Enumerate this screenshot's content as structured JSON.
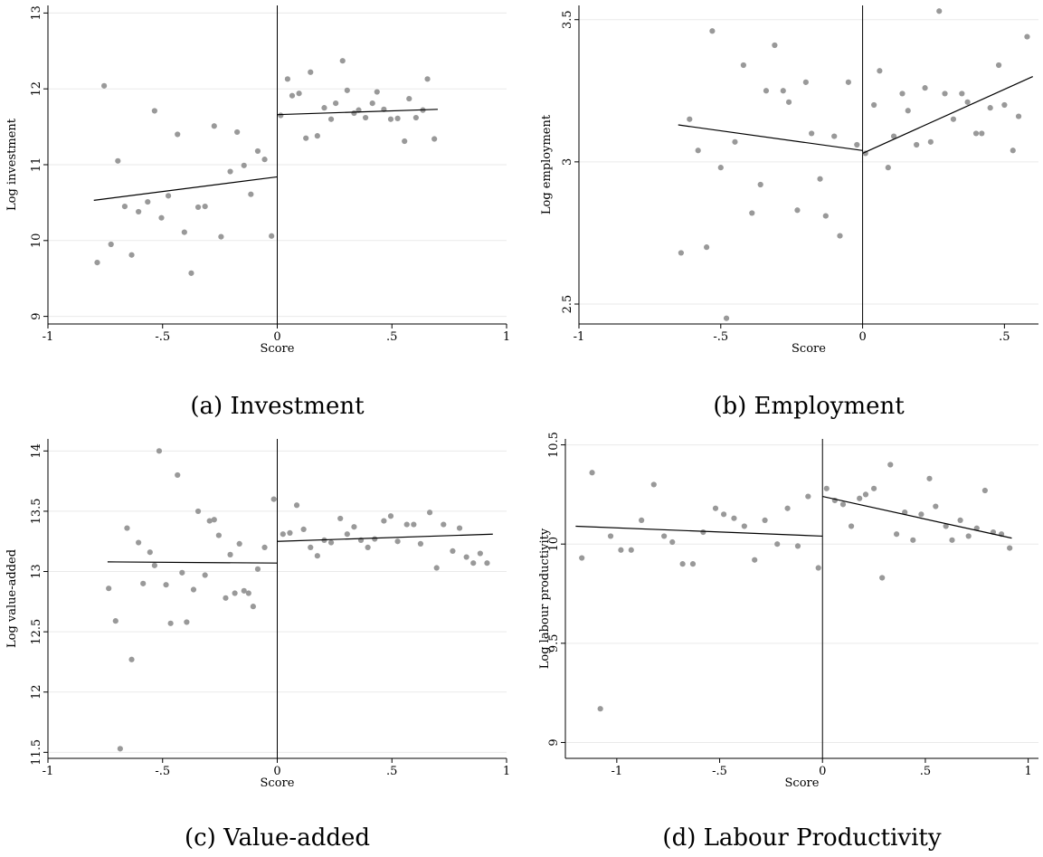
{
  "chart_data": [
    {
      "type": "scatter",
      "caption": "(a) Investment",
      "xlabel": "Score",
      "ylabel": "Log investment",
      "xlim": [
        -1,
        1
      ],
      "ylim": [
        8.9,
        13.1
      ],
      "xticks": [
        -1,
        -0.5,
        0,
        0.5,
        1
      ],
      "xtick_labels": [
        "-1",
        "-.5",
        "0",
        ".5",
        "1"
      ],
      "yticks": [
        9,
        10,
        11,
        12,
        13
      ],
      "ytick_labels": [
        "9",
        "10",
        "11",
        "12",
        "13"
      ],
      "grid": true,
      "cutoff": 0,
      "points": [
        [
          -0.785,
          9.71
        ],
        [
          -0.755,
          12.04
        ],
        [
          -0.725,
          9.95
        ],
        [
          -0.695,
          11.05
        ],
        [
          -0.665,
          10.45
        ],
        [
          -0.635,
          9.81
        ],
        [
          -0.605,
          10.38
        ],
        [
          -0.565,
          10.51
        ],
        [
          -0.535,
          11.71
        ],
        [
          -0.505,
          10.3
        ],
        [
          -0.475,
          10.59
        ],
        [
          -0.435,
          11.4
        ],
        [
          -0.405,
          10.11
        ],
        [
          -0.375,
          9.57
        ],
        [
          -0.345,
          10.44
        ],
        [
          -0.315,
          10.45
        ],
        [
          -0.275,
          11.51
        ],
        [
          -0.245,
          10.05
        ],
        [
          -0.205,
          10.91
        ],
        [
          -0.175,
          11.43
        ],
        [
          -0.145,
          10.99
        ],
        [
          -0.115,
          10.61
        ],
        [
          -0.085,
          11.18
        ],
        [
          -0.055,
          11.07
        ],
        [
          -0.025,
          10.06
        ],
        [
          0.015,
          11.65
        ],
        [
          0.045,
          12.13
        ],
        [
          0.065,
          11.91
        ],
        [
          0.095,
          11.94
        ],
        [
          0.125,
          11.35
        ],
        [
          0.145,
          12.22
        ],
        [
          0.175,
          11.38
        ],
        [
          0.205,
          11.75
        ],
        [
          0.235,
          11.6
        ],
        [
          0.255,
          11.81
        ],
        [
          0.285,
          12.37
        ],
        [
          0.305,
          11.98
        ],
        [
          0.335,
          11.68
        ],
        [
          0.355,
          11.72
        ],
        [
          0.385,
          11.62
        ],
        [
          0.415,
          11.81
        ],
        [
          0.435,
          11.96
        ],
        [
          0.465,
          11.73
        ],
        [
          0.495,
          11.6
        ],
        [
          0.525,
          11.61
        ],
        [
          0.555,
          11.31
        ],
        [
          0.575,
          11.87
        ],
        [
          0.605,
          11.62
        ],
        [
          0.635,
          11.72
        ],
        [
          0.655,
          12.13
        ],
        [
          0.685,
          11.34
        ]
      ],
      "fit_left": [
        [
          -0.8,
          10.53
        ],
        [
          0,
          10.84
        ]
      ],
      "fit_right": [
        [
          0,
          11.66
        ],
        [
          0.7,
          11.73
        ]
      ]
    },
    {
      "type": "scatter",
      "caption": "(b) Employment",
      "xlabel": "Score",
      "ylabel": "Log employment",
      "xlim": [
        -1,
        0.62
      ],
      "ylim": [
        2.43,
        3.55
      ],
      "xticks": [
        -1,
        -0.5,
        0,
        0.5
      ],
      "xtick_labels": [
        "-1",
        "-.5",
        "0",
        ".5"
      ],
      "yticks": [
        2.5,
        3,
        3.5
      ],
      "ytick_labels": [
        "2.5",
        "3",
        "3.5"
      ],
      "grid": true,
      "cutoff": 0,
      "points": [
        [
          -0.64,
          2.68
        ],
        [
          -0.61,
          3.15
        ],
        [
          -0.58,
          3.04
        ],
        [
          -0.55,
          2.7
        ],
        [
          -0.53,
          3.46
        ],
        [
          -0.5,
          2.98
        ],
        [
          -0.48,
          2.45
        ],
        [
          -0.45,
          3.07
        ],
        [
          -0.42,
          3.34
        ],
        [
          -0.39,
          2.82
        ],
        [
          -0.36,
          2.92
        ],
        [
          -0.34,
          3.25
        ],
        [
          -0.31,
          3.41
        ],
        [
          -0.28,
          3.25
        ],
        [
          -0.26,
          3.21
        ],
        [
          -0.23,
          2.83
        ],
        [
          -0.2,
          3.28
        ],
        [
          -0.18,
          3.1
        ],
        [
          -0.15,
          2.94
        ],
        [
          -0.13,
          2.81
        ],
        [
          -0.1,
          3.09
        ],
        [
          -0.08,
          2.74
        ],
        [
          -0.05,
          3.28
        ],
        [
          -0.02,
          3.06
        ],
        [
          0.01,
          3.03
        ],
        [
          0.04,
          3.2
        ],
        [
          0.06,
          3.32
        ],
        [
          0.09,
          2.98
        ],
        [
          0.11,
          3.09
        ],
        [
          0.14,
          3.24
        ],
        [
          0.16,
          3.18
        ],
        [
          0.19,
          3.06
        ],
        [
          0.22,
          3.26
        ],
        [
          0.24,
          3.07
        ],
        [
          0.27,
          3.53
        ],
        [
          0.29,
          3.24
        ],
        [
          0.32,
          3.15
        ],
        [
          0.35,
          3.24
        ],
        [
          0.37,
          3.21
        ],
        [
          0.4,
          3.1
        ],
        [
          0.42,
          3.1
        ],
        [
          0.45,
          3.19
        ],
        [
          0.48,
          3.34
        ],
        [
          0.5,
          3.2
        ],
        [
          0.53,
          3.04
        ],
        [
          0.55,
          3.16
        ],
        [
          0.58,
          3.44
        ]
      ],
      "fit_left": [
        [
          -0.65,
          3.13
        ],
        [
          0,
          3.04
        ]
      ],
      "fit_right": [
        [
          0,
          3.03
        ],
        [
          0.6,
          3.3
        ]
      ]
    },
    {
      "type": "scatter",
      "caption": "(c) Value-added",
      "xlabel": "Score",
      "ylabel": "Log value-added",
      "xlim": [
        -1,
        1
      ],
      "ylim": [
        11.45,
        14.1
      ],
      "xticks": [
        -1,
        -0.5,
        0,
        0.5,
        1
      ],
      "xtick_labels": [
        "-1",
        "-.5",
        "0",
        ".5",
        "1"
      ],
      "yticks": [
        11.5,
        12,
        12.5,
        13,
        13.5,
        14
      ],
      "ytick_labels": [
        "11.5",
        "12",
        "12.5",
        "13",
        "13.5",
        "14"
      ],
      "grid": true,
      "cutoff": 0,
      "points": [
        [
          -0.735,
          12.86
        ],
        [
          -0.705,
          12.59
        ],
        [
          -0.685,
          11.53
        ],
        [
          -0.655,
          13.36
        ],
        [
          -0.635,
          12.27
        ],
        [
          -0.605,
          13.24
        ],
        [
          -0.585,
          12.9
        ],
        [
          -0.555,
          13.16
        ],
        [
          -0.535,
          13.05
        ],
        [
          -0.515,
          14.0
        ],
        [
          -0.485,
          12.89
        ],
        [
          -0.465,
          12.57
        ],
        [
          -0.435,
          13.8
        ],
        [
          -0.415,
          12.99
        ],
        [
          -0.395,
          12.58
        ],
        [
          -0.365,
          12.85
        ],
        [
          -0.345,
          13.5
        ],
        [
          -0.315,
          12.97
        ],
        [
          -0.295,
          13.42
        ],
        [
          -0.275,
          13.43
        ],
        [
          -0.255,
          13.3
        ],
        [
          -0.225,
          12.78
        ],
        [
          -0.205,
          13.14
        ],
        [
          -0.185,
          12.82
        ],
        [
          -0.165,
          13.23
        ],
        [
          -0.145,
          12.84
        ],
        [
          -0.125,
          12.82
        ],
        [
          -0.105,
          12.71
        ],
        [
          -0.085,
          13.02
        ],
        [
          -0.055,
          13.2
        ],
        [
          -0.015,
          13.6
        ],
        [
          0.025,
          13.31
        ],
        [
          0.055,
          13.32
        ],
        [
          0.085,
          13.55
        ],
        [
          0.115,
          13.35
        ],
        [
          0.145,
          13.2
        ],
        [
          0.175,
          13.13
        ],
        [
          0.205,
          13.26
        ],
        [
          0.235,
          13.24
        ],
        [
          0.275,
          13.44
        ],
        [
          0.305,
          13.31
        ],
        [
          0.335,
          13.37
        ],
        [
          0.365,
          13.26
        ],
        [
          0.395,
          13.2
        ],
        [
          0.425,
          13.27
        ],
        [
          0.465,
          13.42
        ],
        [
          0.495,
          13.46
        ],
        [
          0.525,
          13.25
        ],
        [
          0.565,
          13.39
        ],
        [
          0.595,
          13.39
        ],
        [
          0.625,
          13.23
        ],
        [
          0.665,
          13.49
        ],
        [
          0.695,
          13.03
        ],
        [
          0.725,
          13.39
        ],
        [
          0.765,
          13.17
        ],
        [
          0.795,
          13.36
        ],
        [
          0.825,
          13.12
        ],
        [
          0.855,
          13.07
        ],
        [
          0.885,
          13.15
        ],
        [
          0.915,
          13.07
        ]
      ],
      "fit_left": [
        [
          -0.74,
          13.08
        ],
        [
          0,
          13.07
        ]
      ],
      "fit_right": [
        [
          0,
          13.25
        ],
        [
          0.94,
          13.31
        ]
      ]
    },
    {
      "type": "scatter",
      "caption": "(d) Labour Productivity",
      "xlabel": "Score",
      "ylabel": "Log labour productivity",
      "xlim": [
        -1.25,
        1.05
      ],
      "ylim": [
        8.92,
        10.53
      ],
      "xticks": [
        -1,
        -0.5,
        0,
        0.5,
        1
      ],
      "xtick_labels": [
        "-1",
        "-.5",
        "0",
        ".5",
        "1"
      ],
      "yticks": [
        9,
        9.5,
        10,
        10.5
      ],
      "ytick_labels": [
        "9",
        "9.5",
        "10",
        "10.5"
      ],
      "grid": true,
      "cutoff": 0,
      "points": [
        [
          -1.17,
          9.93
        ],
        [
          -1.12,
          10.36
        ],
        [
          -1.08,
          9.17
        ],
        [
          -1.03,
          10.04
        ],
        [
          -0.98,
          9.97
        ],
        [
          -0.93,
          9.97
        ],
        [
          -0.88,
          10.12
        ],
        [
          -0.82,
          10.3
        ],
        [
          -0.77,
          10.04
        ],
        [
          -0.73,
          10.01
        ],
        [
          -0.68,
          9.9
        ],
        [
          -0.63,
          9.9
        ],
        [
          -0.58,
          10.06
        ],
        [
          -0.52,
          10.18
        ],
        [
          -0.48,
          10.15
        ],
        [
          -0.43,
          10.13
        ],
        [
          -0.38,
          10.09
        ],
        [
          -0.33,
          9.92
        ],
        [
          -0.28,
          10.12
        ],
        [
          -0.22,
          10.0
        ],
        [
          -0.17,
          10.18
        ],
        [
          -0.12,
          9.99
        ],
        [
          -0.07,
          10.24
        ],
        [
          -0.02,
          9.88
        ],
        [
          0.02,
          10.28
        ],
        [
          0.06,
          10.22
        ],
        [
          0.1,
          10.2
        ],
        [
          0.14,
          10.09
        ],
        [
          0.18,
          10.23
        ],
        [
          0.21,
          10.25
        ],
        [
          0.25,
          10.28
        ],
        [
          0.29,
          9.83
        ],
        [
          0.33,
          10.4
        ],
        [
          0.36,
          10.05
        ],
        [
          0.4,
          10.16
        ],
        [
          0.44,
          10.02
        ],
        [
          0.48,
          10.15
        ],
        [
          0.52,
          10.33
        ],
        [
          0.55,
          10.19
        ],
        [
          0.6,
          10.09
        ],
        [
          0.63,
          10.02
        ],
        [
          0.67,
          10.12
        ],
        [
          0.71,
          10.04
        ],
        [
          0.75,
          10.08
        ],
        [
          0.79,
          10.27
        ],
        [
          0.83,
          10.06
        ],
        [
          0.87,
          10.05
        ],
        [
          0.91,
          9.98
        ]
      ],
      "fit_left": [
        [
          -1.2,
          10.09
        ],
        [
          0,
          10.04
        ]
      ],
      "fit_right": [
        [
          0,
          10.24
        ],
        [
          0.92,
          10.03
        ]
      ]
    }
  ]
}
